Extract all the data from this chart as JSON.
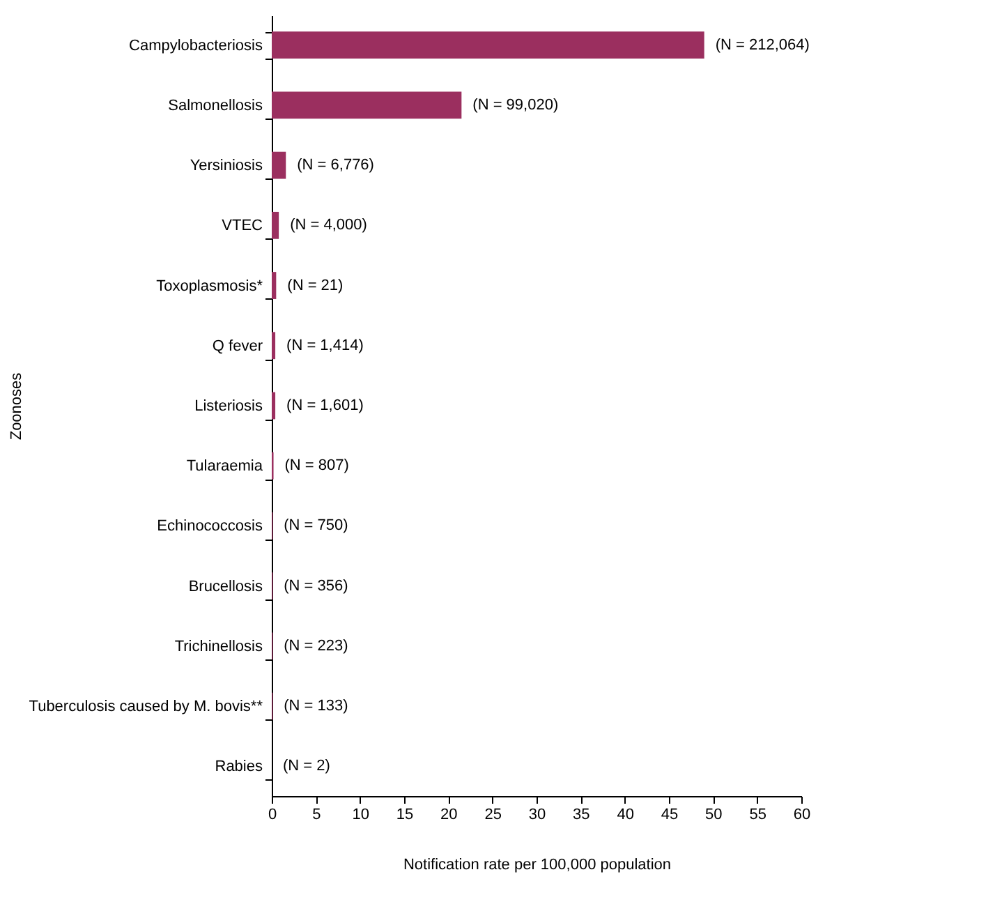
{
  "chart_data": {
    "type": "bar",
    "orientation": "horizontal",
    "xlabel": "Notification rate per 100,000 population",
    "ylabel": "Zoonoses",
    "categories": [
      "Campylobacteriosis",
      "Salmonellosis",
      "Yersiniosis",
      "VTEC",
      "Toxoplasmosis*",
      "Q fever",
      "Listeriosis",
      "Tularaemia",
      "Echinococcosis",
      "Brucellosis",
      "Trichinellosis",
      "Tuberculosis caused by M. bovis**",
      "Rabies"
    ],
    "values": [
      49.0,
      21.5,
      1.6,
      0.8,
      0.5,
      0.4,
      0.4,
      0.2,
      0.1,
      0.1,
      0.1,
      0.1,
      0
    ],
    "annotations": [
      {
        "text": "(N = 212,064)",
        "x": 49.0,
        "y": "Campylobacteriosis"
      },
      {
        "text": "(N = 99,020)",
        "x": 21.5,
        "y": "Salmonellosis"
      },
      {
        "text": "(N = 6,776)",
        "x": 1.6,
        "y": "Yersiniosis"
      },
      {
        "text": "(N = 4,000)",
        "x": 0.8,
        "y": "VTEC"
      },
      {
        "text": "(N = 21)",
        "x": 0.5,
        "y": "Toxoplasmosis*"
      },
      {
        "text": "(N = 1,414)",
        "x": 0.4,
        "y": "Q fever"
      },
      {
        "text": "(N = 1,601)",
        "x": 0.4,
        "y": "Listeriosis"
      },
      {
        "text": "(N = 807)",
        "x": 0.2,
        "y": "Tularaemia"
      },
      {
        "text": "(N = 750)",
        "x": 0.1,
        "y": "Echinococcosis"
      },
      {
        "text": "(N = 356)",
        "x": 0.1,
        "y": "Brucellosis"
      },
      {
        "text": "(N = 223)",
        "x": 0.1,
        "y": "Trichinellosis"
      },
      {
        "text": "(N = 133)",
        "x": 0.1,
        "y": "Tuberculosis caused by M. bovis**"
      },
      {
        "text": "(N = 2)",
        "x": 0,
        "y": "Rabies"
      }
    ],
    "color": "#9b2f5f",
    "xlim": [
      0,
      60
    ],
    "xticks": [
      0,
      5,
      10,
      15,
      20,
      25,
      30,
      35,
      40,
      45,
      50,
      55,
      60
    ],
    "grid": false
  }
}
